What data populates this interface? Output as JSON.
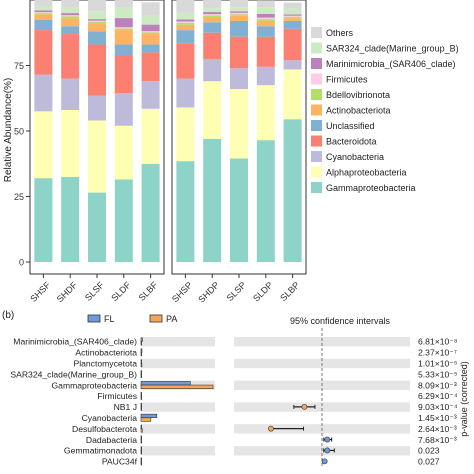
{
  "chart_data": [
    {
      "type": "bar",
      "stacked": true,
      "title": "",
      "xlabel": "",
      "ylabel": "Relative Abundance(%)",
      "ylim": [
        0,
        100
      ],
      "yticks": [
        0,
        25,
        50,
        75
      ],
      "panels": [
        {
          "categories": [
            "SHSF",
            "SHDF",
            "SLSF",
            "SLDF",
            "SLBF"
          ]
        },
        {
          "categories": [
            "SHSP",
            "SHDP",
            "SLSP",
            "SLDP",
            "SLBP"
          ]
        }
      ],
      "categories": [
        "SHSF",
        "SHDF",
        "SLSF",
        "SLDF",
        "SLBF",
        "SHSP",
        "SHDP",
        "SLSP",
        "SLDP",
        "SLBP"
      ],
      "legend_position": "right",
      "series": [
        {
          "name": "Gammaproteobacteria",
          "color": "#8dd3c7",
          "values": [
            32,
            32.5,
            26.5,
            31.5,
            37.5,
            38.5,
            47,
            39.5,
            46.5,
            54.5
          ]
        },
        {
          "name": "Alphaproteobacteria",
          "color": "#ffffb3",
          "values": [
            25.5,
            25.5,
            27.5,
            20.5,
            21,
            20.5,
            22,
            26.5,
            21,
            19
          ]
        },
        {
          "name": "Cyanobacteria",
          "color": "#bebada",
          "values": [
            14,
            12,
            9.5,
            12.5,
            10.5,
            11,
            8.5,
            8,
            7,
            3.5
          ]
        },
        {
          "name": "Bacteroidota",
          "color": "#fb8072",
          "values": [
            17,
            17,
            19.5,
            14.5,
            11,
            13.5,
            10,
            12,
            11.5,
            12
          ]
        },
        {
          "name": "Unclassified",
          "color": "#80b1d3",
          "values": [
            4,
            3,
            5,
            4,
            3,
            5,
            4,
            6,
            4,
            3
          ]
        },
        {
          "name": "Actinobacteriota",
          "color": "#fdb462",
          "values": [
            2,
            3,
            3,
            5.5,
            4,
            2,
            2,
            2,
            2,
            1
          ]
        },
        {
          "name": "Bdellovibrionota",
          "color": "#b3de69",
          "values": [
            0.5,
            0.7,
            0.6,
            0.6,
            0.6,
            0.8,
            0.6,
            0.6,
            0.7,
            0.5
          ]
        },
        {
          "name": "Firmicutes",
          "color": "#fccde5",
          "values": [
            0.4,
            0.5,
            0.5,
            0.5,
            0.5,
            0.5,
            0.5,
            0.5,
            0.6,
            0.5
          ]
        },
        {
          "name": "Marinimicrobia_(SAR406_clade)",
          "color": "#bc80bd",
          "values": [
            0.6,
            0.8,
            0.6,
            3.5,
            2.5,
            0.8,
            0.8,
            0.6,
            1.4,
            0.5
          ]
        },
        {
          "name": "SAR324_clade(Marine_group_B)",
          "color": "#ccebc5",
          "values": [
            1.5,
            2,
            3,
            4,
            3.5,
            2.5,
            1.5,
            1.5,
            2.5,
            2.2
          ]
        },
        {
          "name": "Others",
          "color": "#d9d9d9",
          "values": [
            2.5,
            3,
            4.3,
            3,
            5,
            4.9,
            3.1,
            2.8,
            2.7,
            2.3
          ]
        }
      ]
    },
    {
      "type": "bar",
      "panel_label": "(b)",
      "orientation": "horizontal",
      "title": "",
      "legend_position": "top-left",
      "ci_title": "95% confidence intervals",
      "pvalue_label": "p-value (corrected)",
      "categories": [
        "Marinimicrobia_(SAR406_clade)",
        "Actinobacteriota",
        "Planctomycetota",
        "SAR324_clade(Marine_group_B)",
        "Gammaproteobacteria",
        "Firmicutes",
        "NB1_j",
        "Cyanobacteria",
        "Desulfobacterota",
        "Dadabacteria",
        "Gemmatimonadota",
        "PAUC34f"
      ],
      "category_labels": [
        "Marinimicrobia_(SAR406_clade)",
        "Actinobacteriota",
        "Planctomycetota",
        "SAR324_clade(Marine_group_B)",
        "Gammaproteobacteria",
        "Firmicutes",
        "NB1 J",
        "Cyanobacteria",
        "Desulfobacterota",
        "Dadabacteria",
        "Gemmatimonadota",
        "PAUC34f"
      ],
      "series": [
        {
          "name": "FL",
          "color": "#6f9bd6",
          "values": [
            1.4,
            1.0,
            0.3,
            0.6,
            50.0,
            0.3,
            0.1,
            16.0,
            0.3,
            0.2,
            0.15,
            0.1
          ]
        },
        {
          "name": "PA",
          "color": "#f2a65a",
          "values": [
            0.3,
            0.3,
            0.9,
            0.3,
            73.0,
            0.6,
            0.3,
            10.0,
            1.3,
            0.1,
            0.1,
            0.05
          ]
        }
      ],
      "bar_xlim": [
        0,
        75
      ],
      "ci": {
        "xlim": [
          -10,
          10
        ],
        "zero_line": 0,
        "points": [
          {
            "category": "NB1_j",
            "estimate": -2.0,
            "lower": -3.2,
            "upper": -0.8,
            "color": "#f2a65a"
          },
          {
            "category": "Desulfobacterota",
            "estimate": -5.8,
            "lower": -5.8,
            "upper": -2.1,
            "color": "#f2a65a"
          },
          {
            "category": "Dadabacteria",
            "estimate": 0.6,
            "lower": 0.2,
            "upper": 1.1,
            "color": "#6f9bd6"
          },
          {
            "category": "Gemmatimonadota",
            "estimate": 0.6,
            "lower": 0.2,
            "upper": 1.4,
            "color": "#6f9bd6"
          },
          {
            "category": "PAUC34f",
            "estimate": 0.3,
            "lower": 0.3,
            "upper": 0.3,
            "color": "#6f9bd6"
          }
        ]
      },
      "p_values": [
        "6.81×10⁻⁸",
        "2.37×10⁻⁷",
        "1.01×10⁻⁵",
        "5.33×10⁻⁵",
        "8.09×10⁻³",
        "6.29×10⁻⁴",
        "9.03×10⁻⁴",
        "1.45×10⁻³",
        "2.64×10⁻³",
        "7.68×10⁻³",
        "0.023",
        "0.027"
      ]
    }
  ]
}
